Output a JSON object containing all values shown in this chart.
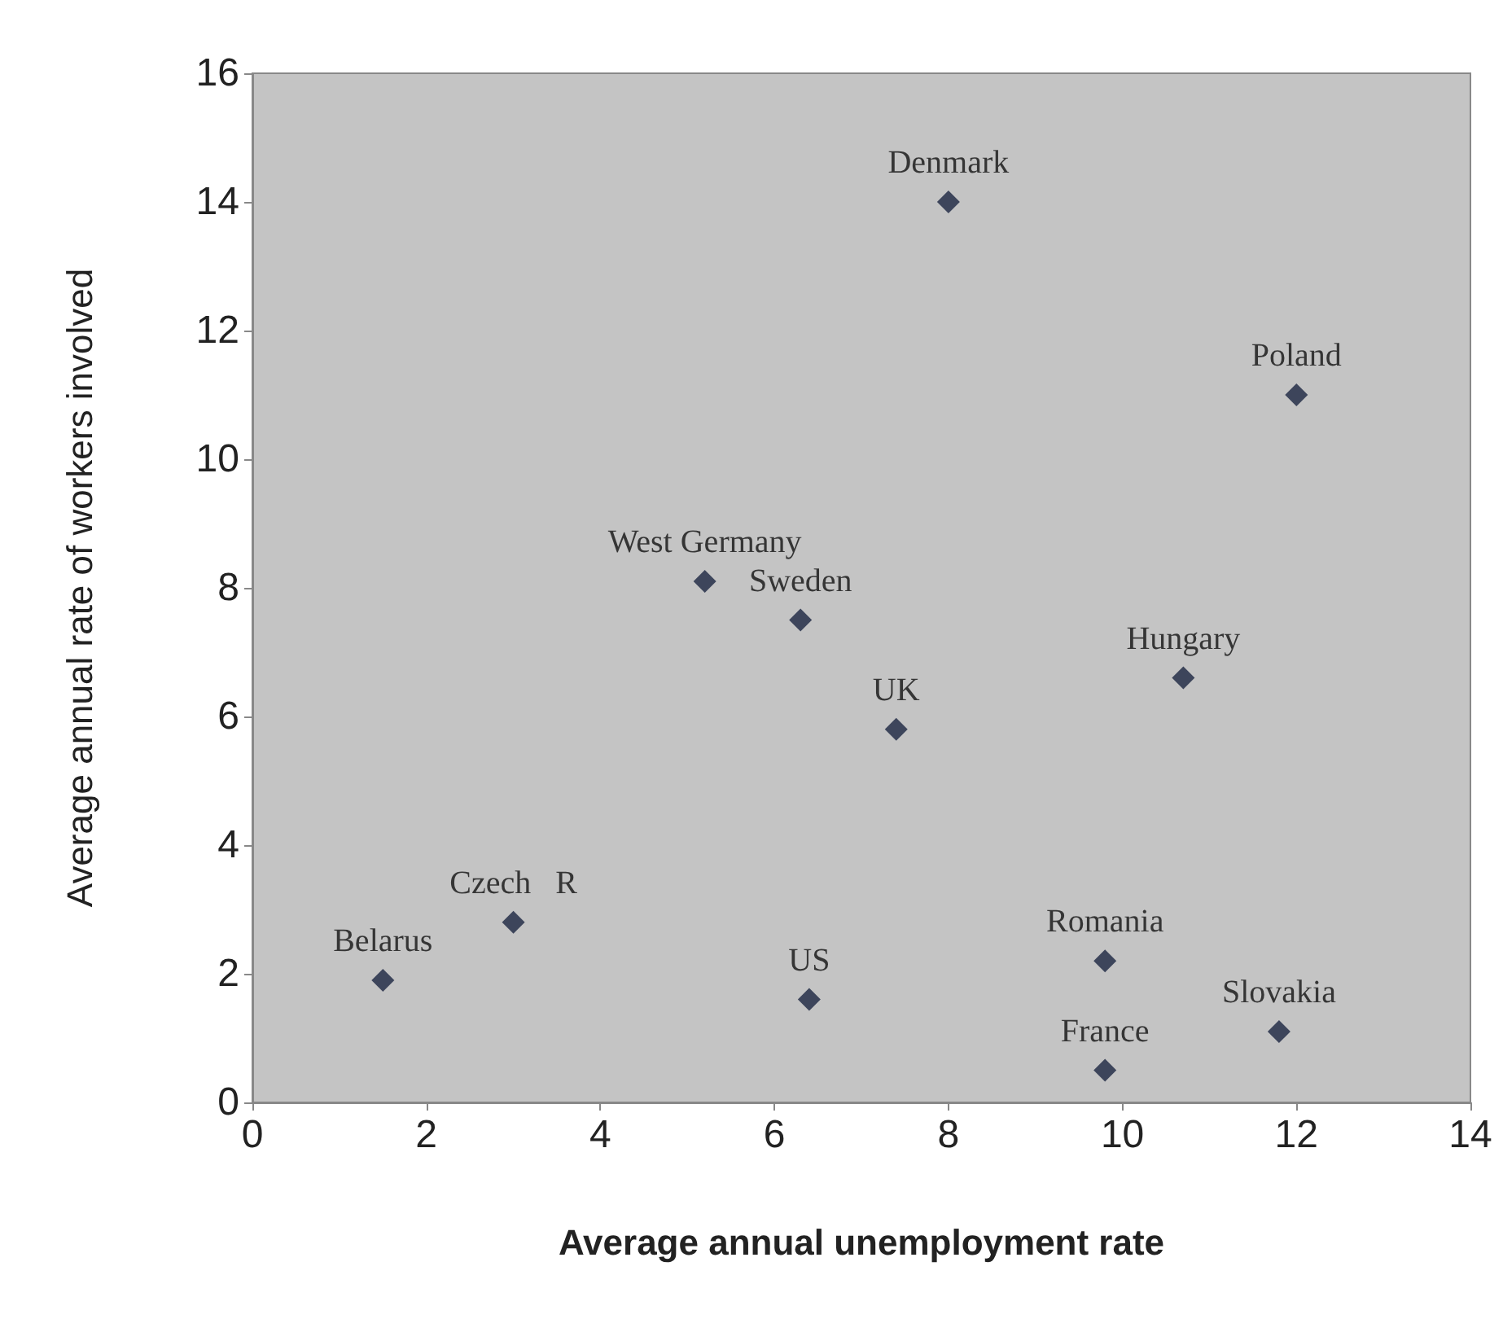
{
  "chart_data": {
    "type": "scatter",
    "xlabel": "Average annual unemployment rate",
    "ylabel": "Average annual rate of workers involved",
    "x": [
      8.0,
      12.0,
      5.2,
      6.3,
      7.4,
      10.7,
      1.5,
      3.0,
      6.4,
      9.8,
      11.8,
      9.8
    ],
    "values": [
      14,
      11,
      8.1,
      7.5,
      5.8,
      6.6,
      1.9,
      2.8,
      1.6,
      2.2,
      1.1,
      0.5
    ],
    "color": "#1c2541",
    "marker": "diamond",
    "annotations": [
      {
        "text": "Denmark",
        "x": 8.0,
        "y": 14
      },
      {
        "text": "Poland",
        "x": 12.0,
        "y": 11
      },
      {
        "text": "West Germany",
        "x": 5.2,
        "y": 8.1
      },
      {
        "text": "Sweden",
        "x": 6.3,
        "y": 7.5
      },
      {
        "text": "UK",
        "x": 7.4,
        "y": 5.8
      },
      {
        "text": "Hungary",
        "x": 10.7,
        "y": 6.6
      },
      {
        "text": "Belarus",
        "x": 1.5,
        "y": 1.9
      },
      {
        "text": "Czech   R",
        "x": 3.0,
        "y": 2.8
      },
      {
        "text": "US",
        "x": 6.4,
        "y": 1.6
      },
      {
        "text": "Romania",
        "x": 9.8,
        "y": 2.2
      },
      {
        "text": "Slovakia",
        "x": 11.8,
        "y": 1.1
      },
      {
        "text": "France",
        "x": 9.8,
        "y": 0.5
      }
    ],
    "xlim": [
      0,
      14
    ],
    "xticks": [
      0,
      2,
      4,
      6,
      8,
      10,
      12,
      14
    ],
    "ylim": [
      0,
      16
    ],
    "yticks": [
      0,
      2,
      4,
      6,
      8,
      10,
      12,
      14,
      16
    ],
    "grid": false
  }
}
